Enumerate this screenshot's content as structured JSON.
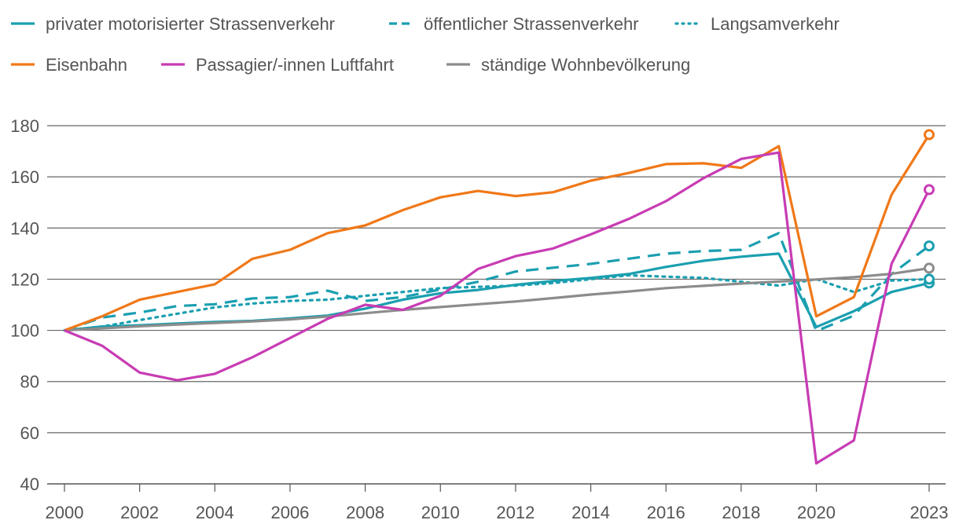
{
  "chart_data": {
    "type": "line",
    "title": "",
    "xlabel": "",
    "ylabel": "",
    "xlim": [
      2000,
      2023
    ],
    "ylim": [
      40,
      180
    ],
    "y_ticks": [
      40,
      60,
      80,
      100,
      120,
      140,
      160,
      180
    ],
    "x_ticks": [
      2000,
      2002,
      2004,
      2006,
      2008,
      2010,
      2012,
      2014,
      2016,
      2018,
      2020,
      2023
    ],
    "grid": "horizontal",
    "legend_position": "top",
    "x": [
      2000,
      2001,
      2002,
      2003,
      2004,
      2005,
      2006,
      2007,
      2008,
      2009,
      2010,
      2011,
      2012,
      2013,
      2014,
      2015,
      2016,
      2017,
      2018,
      2019,
      2020,
      2021,
      2022,
      2023
    ],
    "series": [
      {
        "name": "privater motorisierter Strassenverkehr",
        "color": "#1a9fb0",
        "dash": "solid",
        "values": [
          100,
          101.5,
          102.0,
          102.7,
          103.3,
          103.7,
          104.7,
          105.8,
          108.5,
          112.0,
          114.5,
          115.8,
          117.8,
          119.3,
          120.5,
          122.0,
          124.8,
          127.2,
          128.8,
          130.0,
          101.3,
          107.5,
          115.0,
          118.5
        ]
      },
      {
        "name": "öffentlicher Strassenverkehr",
        "color": "#1a9fb0",
        "dash": "dashed",
        "values": [
          100,
          105.0,
          107.0,
          109.5,
          110.2,
          112.5,
          113.0,
          115.5,
          111.5,
          113.0,
          116.0,
          119.0,
          123.0,
          124.5,
          126.0,
          128.0,
          130.0,
          131.0,
          131.5,
          138.0,
          99.7,
          105.8,
          122.0,
          133.0
        ]
      },
      {
        "name": "Langsamverkehr",
        "color": "#1a9fb0",
        "dash": "dotted",
        "values": [
          100,
          101.5,
          104.0,
          106.5,
          109.0,
          110.5,
          111.5,
          112.0,
          113.5,
          115.0,
          116.5,
          117.0,
          117.5,
          118.5,
          120.0,
          121.5,
          121.0,
          120.5,
          119.0,
          117.5,
          120.0,
          115.0,
          119.5,
          120.0
        ]
      },
      {
        "name": "Eisenbahn",
        "color": "#f07818",
        "dash": "solid",
        "values": [
          100,
          105.5,
          112.0,
          115.0,
          118.0,
          128.0,
          131.5,
          138.0,
          141.0,
          147.0,
          152.0,
          154.5,
          152.5,
          154.0,
          158.5,
          161.5,
          165.0,
          165.3,
          163.5,
          172.0,
          105.5,
          113.0,
          153.0,
          176.5
        ]
      },
      {
        "name": "Passagier/-innen Luftfahrt",
        "color": "#c83cb4",
        "dash": "solid",
        "values": [
          100,
          94.0,
          83.5,
          80.5,
          83.0,
          89.5,
          97.0,
          104.5,
          110.0,
          108.0,
          113.5,
          124.0,
          129.0,
          132.0,
          137.5,
          143.5,
          150.5,
          159.5,
          167.0,
          169.5,
          48.0,
          57.0,
          126.0,
          155.0
        ]
      },
      {
        "name": "ständige Wohnbevölkerung",
        "color": "#8c8c8c",
        "dash": "solid",
        "values": [
          100,
          100.8,
          101.6,
          102.3,
          102.9,
          103.5,
          104.3,
          105.4,
          106.7,
          108.0,
          109.1,
          110.2,
          111.3,
          112.6,
          114.0,
          115.2,
          116.5,
          117.4,
          118.3,
          119.1,
          119.9,
          120.8,
          122.1,
          124.3
        ]
      }
    ],
    "markers_last_point": true
  }
}
